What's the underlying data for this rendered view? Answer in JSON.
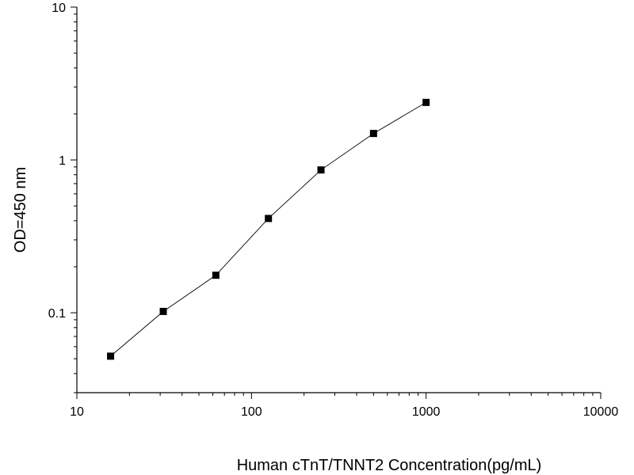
{
  "chart_data": {
    "type": "scatter",
    "title": "",
    "xlabel": "Human cTnT/TNNT2 Concentration(pg/mL)",
    "ylabel": "OD=450 nm",
    "x_scale": "log",
    "y_scale": "log",
    "xlim": [
      10,
      10000
    ],
    "ylim": [
      0.03,
      10
    ],
    "x_ticks": [
      10,
      100,
      1000,
      10000
    ],
    "x_tick_labels": [
      "10",
      "100",
      "1000",
      "10000"
    ],
    "y_ticks": [
      0.1,
      1,
      10
    ],
    "y_tick_labels": [
      "0.1",
      "1",
      "10"
    ],
    "grid": false,
    "legend": "none",
    "marker": "square",
    "connected_line": true,
    "colors": {
      "marker": "#000000",
      "line": "#000000",
      "axis": "#000000"
    },
    "series": [
      {
        "x": [
          15.6,
          31.25,
          62.5,
          125,
          250,
          500,
          1000
        ],
        "y": [
          0.052,
          0.102,
          0.176,
          0.414,
          0.86,
          1.49,
          2.38
        ]
      }
    ]
  }
}
